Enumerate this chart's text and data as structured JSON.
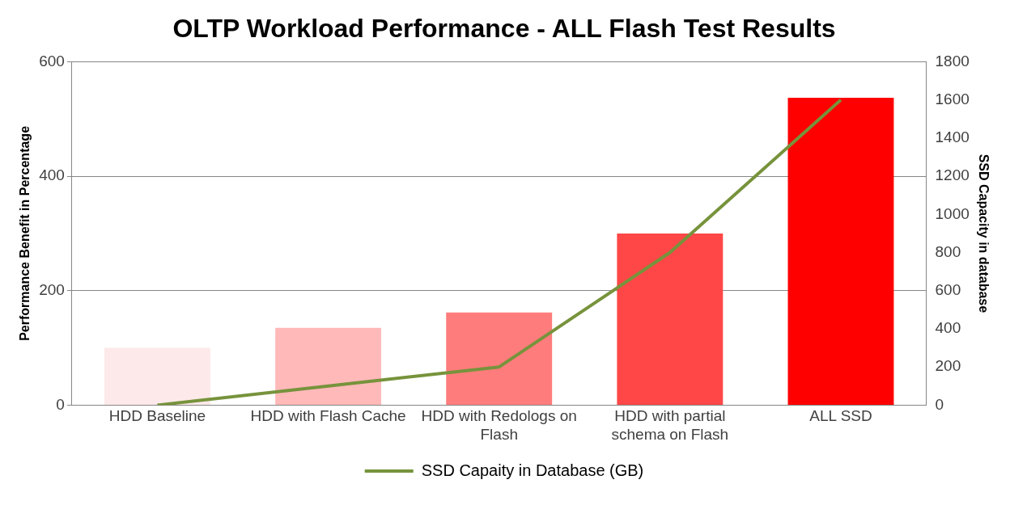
{
  "chart_data": {
    "type": "bar",
    "title": "OLTP Workload Performance - ALL Flash Test Results",
    "ylabel": "Performance Benefit in Percentage",
    "y2label": "SSD Capacity in database",
    "categories": [
      "HDD Baseline",
      "HDD with Flash Cache",
      "HDD with Redologs on Flash",
      "HDD with partial schema on Flash",
      "ALL SSD"
    ],
    "series": [
      {
        "colors": [
          "#fde9e9",
          "#ffb9b9",
          "#ff7c7c",
          "#ff4747",
          "#ff0000"
        ],
        "values": [
          100,
          135,
          162,
          300,
          537
        ]
      },
      {
        "type": "line",
        "name": "SSD Capaity in Database (GB)",
        "color": "#77933c",
        "axis": "y2",
        "values": [
          0,
          100,
          200,
          800,
          1600
        ]
      }
    ],
    "ylim": [
      0,
      600
    ],
    "yticks": [
      0,
      200,
      400,
      600
    ],
    "y2lim": [
      0,
      1800
    ],
    "y2ticks": [
      0,
      200,
      400,
      600,
      800,
      1000,
      1200,
      1400,
      1600,
      1800
    ],
    "grid": "y",
    "legend": "bottom",
    "marker": "none"
  }
}
